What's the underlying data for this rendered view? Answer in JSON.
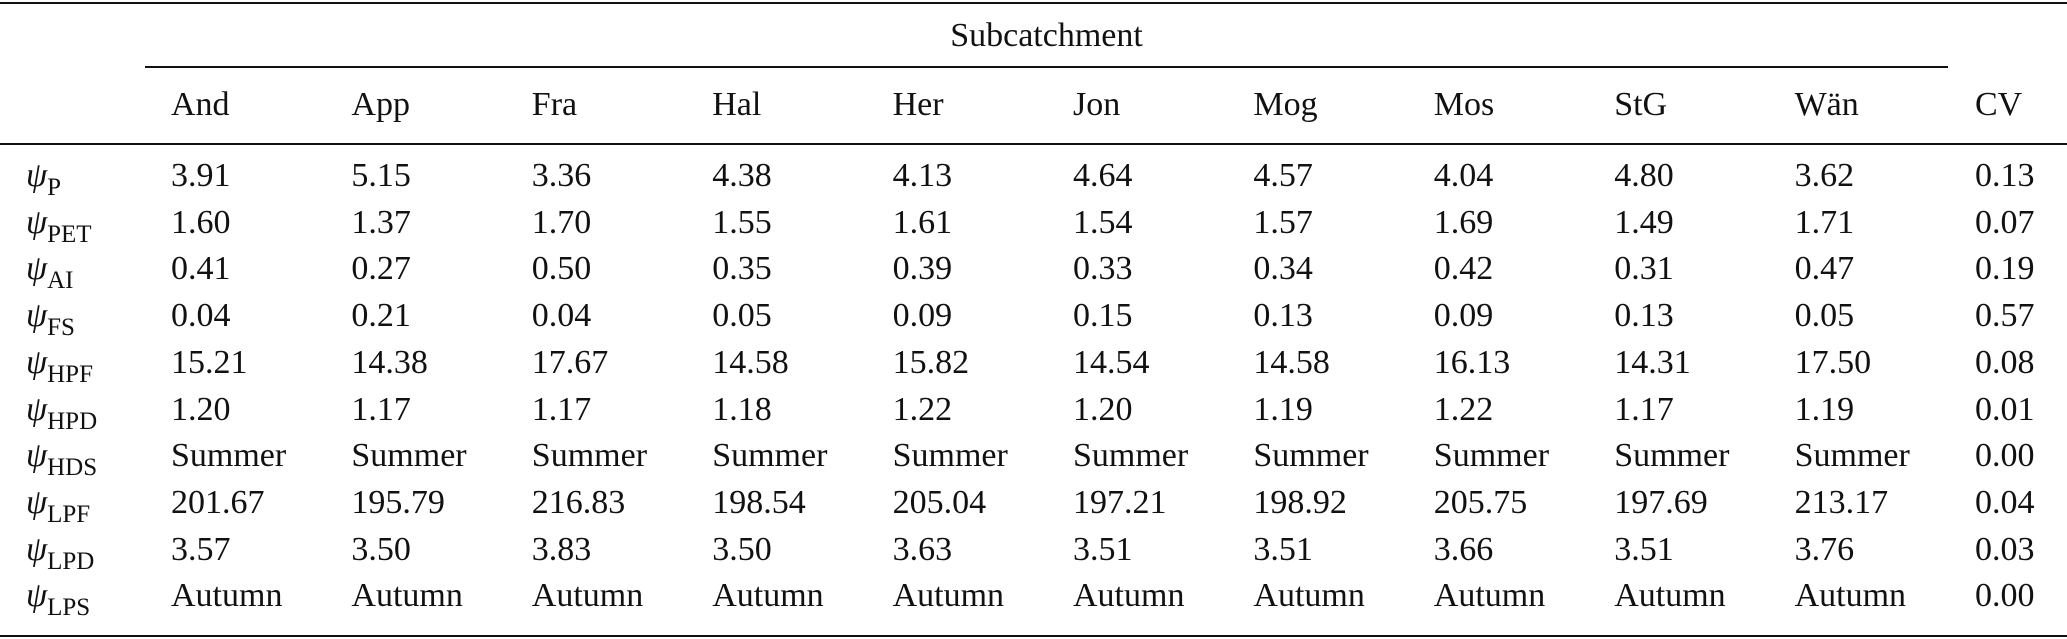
{
  "table": {
    "group_header": "Subcatchment",
    "columns": [
      "And",
      "App",
      "Fra",
      "Hal",
      "Her",
      "Jon",
      "Mog",
      "Mos",
      "StG",
      "Wän",
      "CV"
    ],
    "rows": [
      {
        "symbol": "ψ",
        "sub": "P",
        "cells": [
          "3.91",
          "5.15",
          "3.36",
          "4.38",
          "4.13",
          "4.64",
          "4.57",
          "4.04",
          "4.80",
          "3.62",
          "0.13"
        ]
      },
      {
        "symbol": "ψ",
        "sub": "PET",
        "cells": [
          "1.60",
          "1.37",
          "1.70",
          "1.55",
          "1.61",
          "1.54",
          "1.57",
          "1.69",
          "1.49",
          "1.71",
          "0.07"
        ]
      },
      {
        "symbol": "ψ",
        "sub": "AI",
        "cells": [
          "0.41",
          "0.27",
          "0.50",
          "0.35",
          "0.39",
          "0.33",
          "0.34",
          "0.42",
          "0.31",
          "0.47",
          "0.19"
        ]
      },
      {
        "symbol": "ψ",
        "sub": "FS",
        "cells": [
          "0.04",
          "0.21",
          "0.04",
          "0.05",
          "0.09",
          "0.15",
          "0.13",
          "0.09",
          "0.13",
          "0.05",
          "0.57"
        ]
      },
      {
        "symbol": "ψ",
        "sub": "HPF",
        "cells": [
          "15.21",
          "14.38",
          "17.67",
          "14.58",
          "15.82",
          "14.54",
          "14.58",
          "16.13",
          "14.31",
          "17.50",
          "0.08"
        ]
      },
      {
        "symbol": "ψ",
        "sub": "HPD",
        "cells": [
          "1.20",
          "1.17",
          "1.17",
          "1.18",
          "1.22",
          "1.20",
          "1.19",
          "1.22",
          "1.17",
          "1.19",
          "0.01"
        ]
      },
      {
        "symbol": "ψ",
        "sub": "HDS",
        "cells": [
          "Summer",
          "Summer",
          "Summer",
          "Summer",
          "Summer",
          "Summer",
          "Summer",
          "Summer",
          "Summer",
          "Summer",
          "0.00"
        ]
      },
      {
        "symbol": "ψ",
        "sub": "LPF",
        "cells": [
          "201.67",
          "195.79",
          "216.83",
          "198.54",
          "205.04",
          "197.21",
          "198.92",
          "205.75",
          "197.69",
          "213.17",
          "0.04"
        ]
      },
      {
        "symbol": "ψ",
        "sub": "LPD",
        "cells": [
          "3.57",
          "3.50",
          "3.83",
          "3.50",
          "3.63",
          "3.51",
          "3.51",
          "3.66",
          "3.51",
          "3.76",
          "0.03"
        ]
      },
      {
        "symbol": "ψ",
        "sub": "LPS",
        "cells": [
          "Autumn",
          "Autumn",
          "Autumn",
          "Autumn",
          "Autumn",
          "Autumn",
          "Autumn",
          "Autumn",
          "Autumn",
          "Autumn",
          "0.00"
        ]
      }
    ]
  }
}
